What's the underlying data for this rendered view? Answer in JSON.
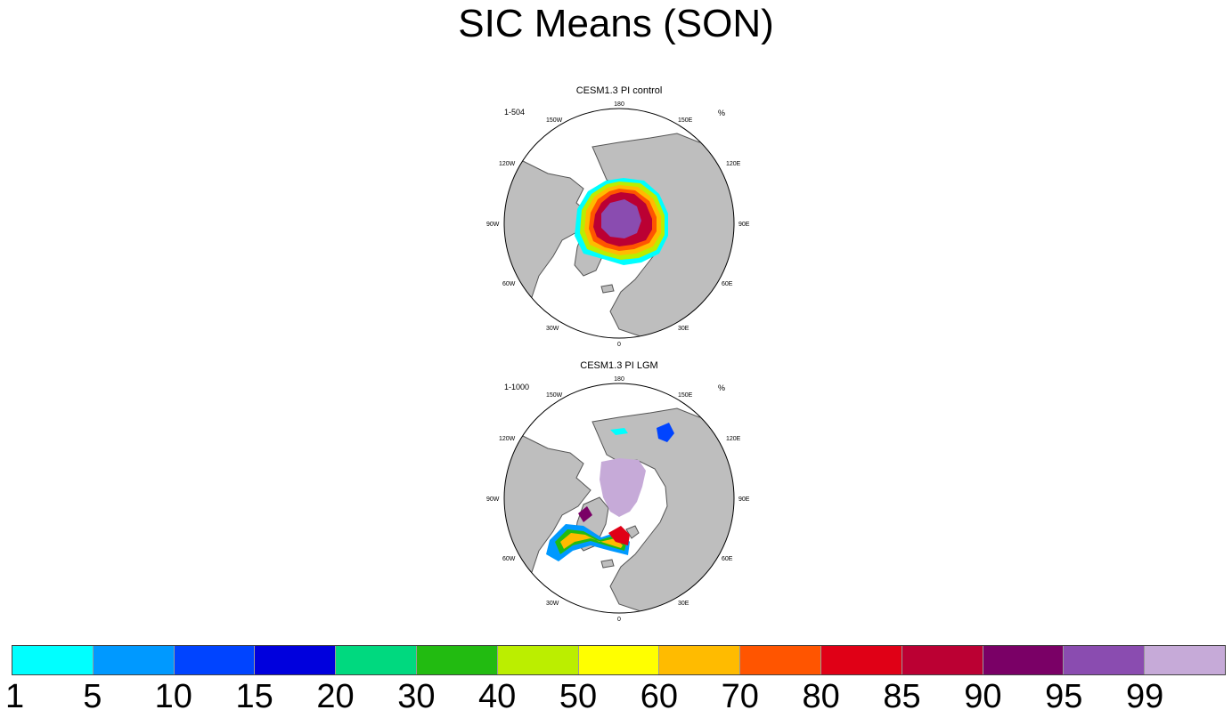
{
  "title": "SIC Means (SON)",
  "panels": [
    {
      "title": "CESM1.3 PI control",
      "range": "1-504",
      "units": "%"
    },
    {
      "title": "CESM1.3 PI LGM",
      "range": "1-1000",
      "units": "%"
    }
  ],
  "longitude_labels": {
    "top": "180",
    "bottom": "0",
    "upper_left": "150W",
    "upper_right": "150E",
    "left_upper": "120W",
    "right_upper": "120E",
    "left": "90W",
    "right": "90E",
    "left_lower": "60W",
    "right_lower": "60E",
    "lower_left": "30W",
    "lower_right": "30E"
  },
  "colorbar": {
    "labels": [
      "1",
      "5",
      "10",
      "15",
      "20",
      "30",
      "40",
      "50",
      "60",
      "70",
      "80",
      "85",
      "90",
      "95",
      "99"
    ],
    "colors": [
      "#00ffff",
      "#0099ff",
      "#0044ff",
      "#0000dd",
      "#00d97f",
      "#22bb11",
      "#bbee00",
      "#ffff00",
      "#ffbb00",
      "#ff5500",
      "#e00016",
      "#bb0033",
      "#7a0066",
      "#8a4cb0",
      "#c6aad8"
    ]
  },
  "colors": {
    "land": "#bebebe",
    "ocean": "#ffffff",
    "coast": "#555555"
  }
}
